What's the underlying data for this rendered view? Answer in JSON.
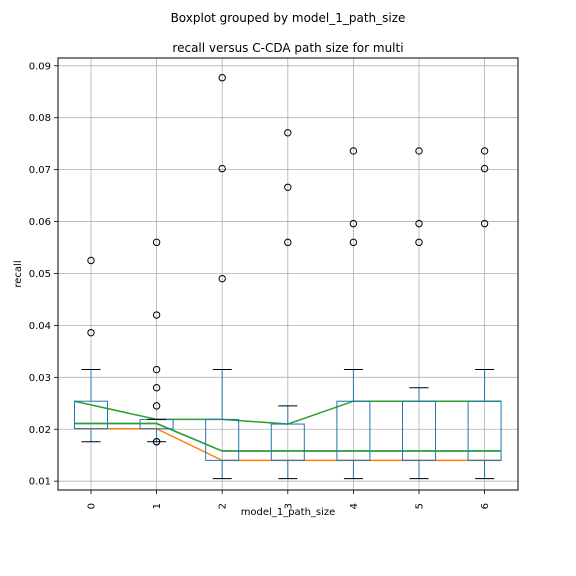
{
  "chart_data": {
    "type": "boxplot",
    "suptitle": "Boxplot grouped by model_1_path_size",
    "title": "recall versus C-CDA path size for multi",
    "xlabel": "model_1_path_size",
    "ylabel": "recall",
    "categories": [
      "0",
      "1",
      "2",
      "3",
      "4",
      "5",
      "6"
    ],
    "ylim": [
      0.0083,
      0.0915
    ],
    "yticks": [
      0.01,
      0.02,
      0.03,
      0.04,
      0.05,
      0.06,
      0.07,
      0.08,
      0.09
    ],
    "ytick_labels": [
      "0.01",
      "0.02",
      "0.03",
      "0.04",
      "0.05",
      "0.06",
      "0.07",
      "0.08",
      "0.09"
    ],
    "grid": true,
    "boxes": [
      {
        "category": "0",
        "whislo": 0.0176,
        "q1": 0.0201,
        "med": 0.0201,
        "q3": 0.0254,
        "whishi": 0.0315,
        "fliers": [
          0.0386,
          0.0525
        ]
      },
      {
        "category": "1",
        "whislo": 0.0176,
        "q1": 0.0201,
        "med": 0.0201,
        "q3": 0.0219,
        "whishi": 0.0219,
        "fliers": [
          0.0176,
          0.0176,
          0.0245,
          0.028,
          0.0315,
          0.042,
          0.056
        ]
      },
      {
        "category": "2",
        "whislo": 0.0105,
        "q1": 0.014,
        "med": 0.014,
        "q3": 0.0219,
        "whishi": 0.0315,
        "fliers": [
          0.049,
          0.0702,
          0.0877
        ]
      },
      {
        "category": "3",
        "whislo": 0.0105,
        "q1": 0.014,
        "med": 0.014,
        "q3": 0.021,
        "whishi": 0.0245,
        "fliers": [
          0.056,
          0.0666,
          0.0771
        ]
      },
      {
        "category": "4",
        "whislo": 0.0105,
        "q1": 0.014,
        "med": 0.014,
        "q3": 0.0254,
        "whishi": 0.0315,
        "fliers": [
          0.056,
          0.0596,
          0.0736
        ]
      },
      {
        "category": "5",
        "whislo": 0.0105,
        "q1": 0.014,
        "med": 0.014,
        "q3": 0.0254,
        "whishi": 0.028,
        "fliers": [
          0.056,
          0.0596,
          0.0736
        ]
      },
      {
        "category": "6",
        "whislo": 0.0105,
        "q1": 0.014,
        "med": 0.014,
        "q3": 0.0254,
        "whishi": 0.0315,
        "fliers": [
          0.0596,
          0.0702,
          0.0736
        ]
      }
    ],
    "lines": [
      {
        "color": "#1f77b4",
        "values": [
          0.0211,
          0.0211,
          0.0158,
          0.0158,
          0.0158,
          0.0158,
          0.0158
        ]
      },
      {
        "color": "#ff7f0e",
        "values": [
          0.0201,
          0.0201,
          0.014,
          0.014,
          0.014,
          0.014,
          0.014
        ]
      },
      {
        "color": "#2ca02c",
        "values": [
          0.0254,
          0.0219,
          0.0219,
          0.021,
          0.0254,
          0.0254,
          0.0254
        ]
      },
      {
        "color": "#2ca02c",
        "values": [
          0.0211,
          0.0211,
          0.0158,
          0.0158,
          0.0158,
          0.0158,
          0.0158
        ]
      }
    ],
    "colors": {
      "box": "#1f77b4",
      "whisker": "#000000",
      "grid": "#b0b0b0"
    }
  }
}
